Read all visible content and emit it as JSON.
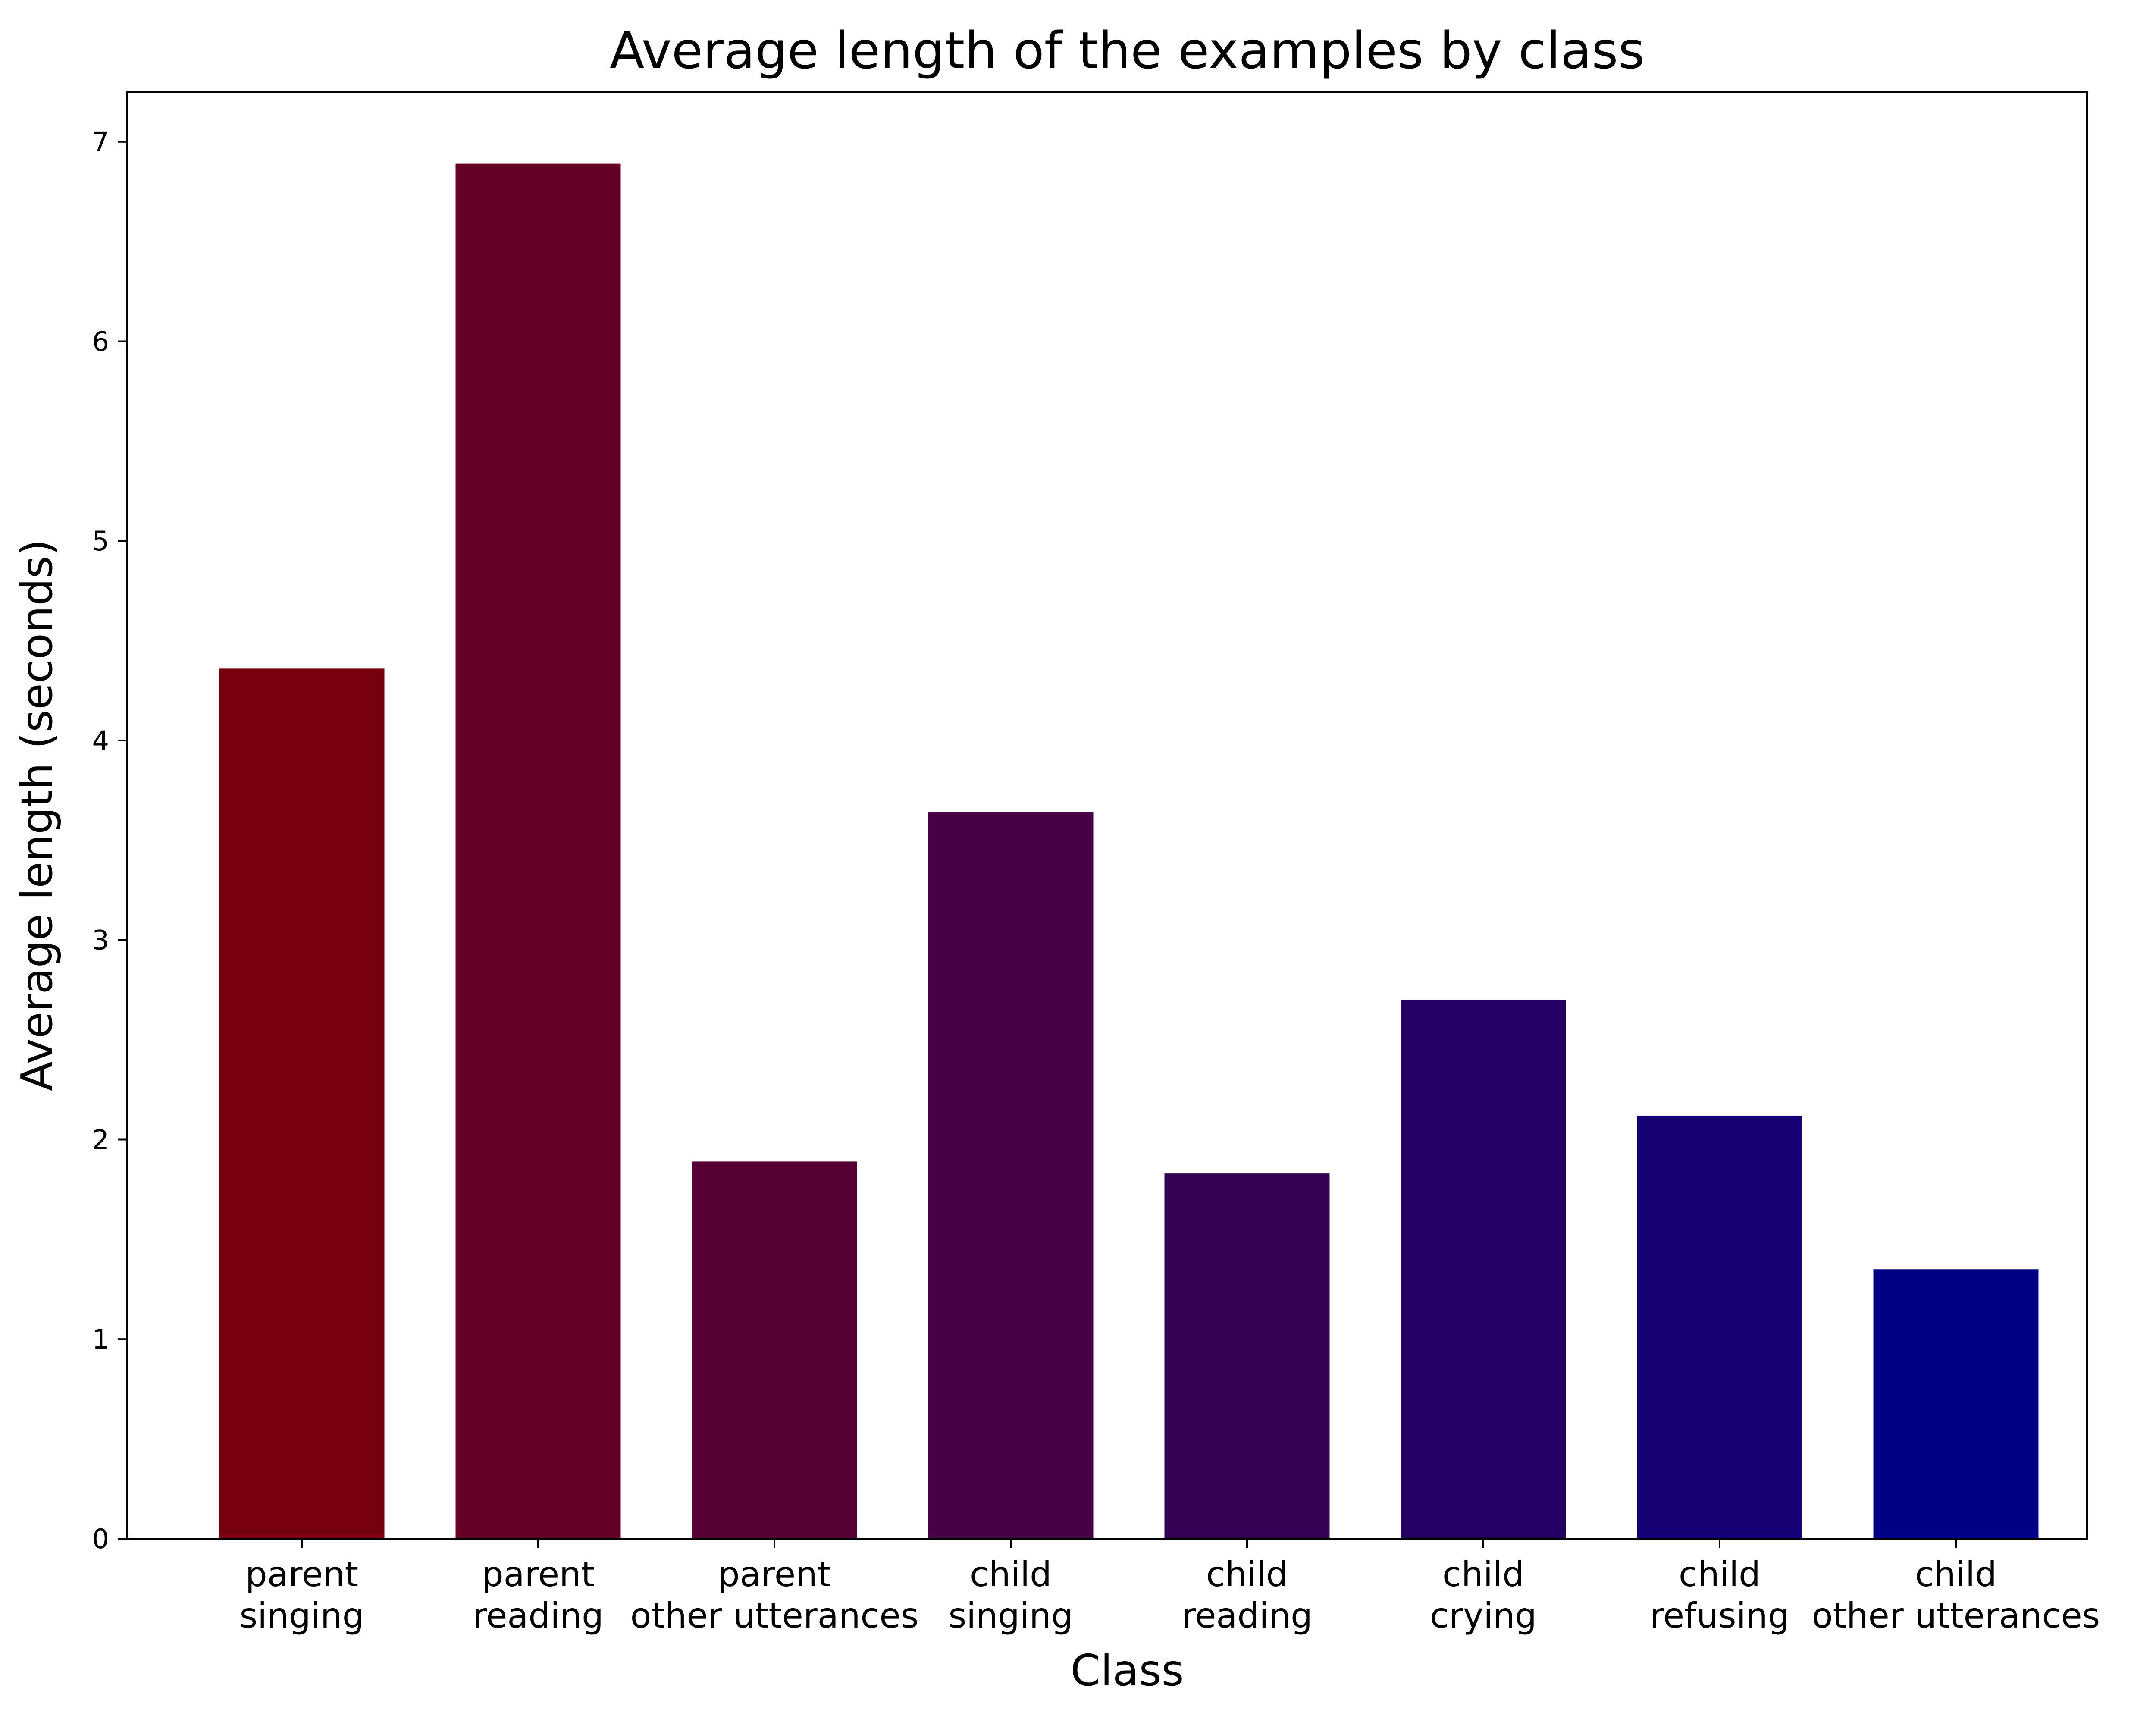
{
  "chart_data": {
    "type": "bar",
    "title": "Average length of the examples by class",
    "xlabel": "Class",
    "ylabel": "Average length (seconds)",
    "ylim": [
      0,
      7.25
    ],
    "yticks": [
      0,
      1,
      2,
      3,
      4,
      5,
      6,
      7
    ],
    "grid": false,
    "categories": [
      [
        "parent",
        "singing"
      ],
      [
        "parent",
        "reading"
      ],
      [
        "parent",
        "other utterances"
      ],
      [
        "child",
        "singing"
      ],
      [
        "child",
        "reading"
      ],
      [
        "child",
        "crying"
      ],
      [
        "child",
        "refusing"
      ],
      [
        "child",
        "other utterances"
      ]
    ],
    "values": [
      4.36,
      6.89,
      1.89,
      3.64,
      1.83,
      2.7,
      2.12,
      1.35
    ],
    "colors": [
      "#760010",
      "#650024",
      "#560033",
      "#470043",
      "#350052",
      "#250062",
      "#150073",
      "#000085"
    ]
  }
}
